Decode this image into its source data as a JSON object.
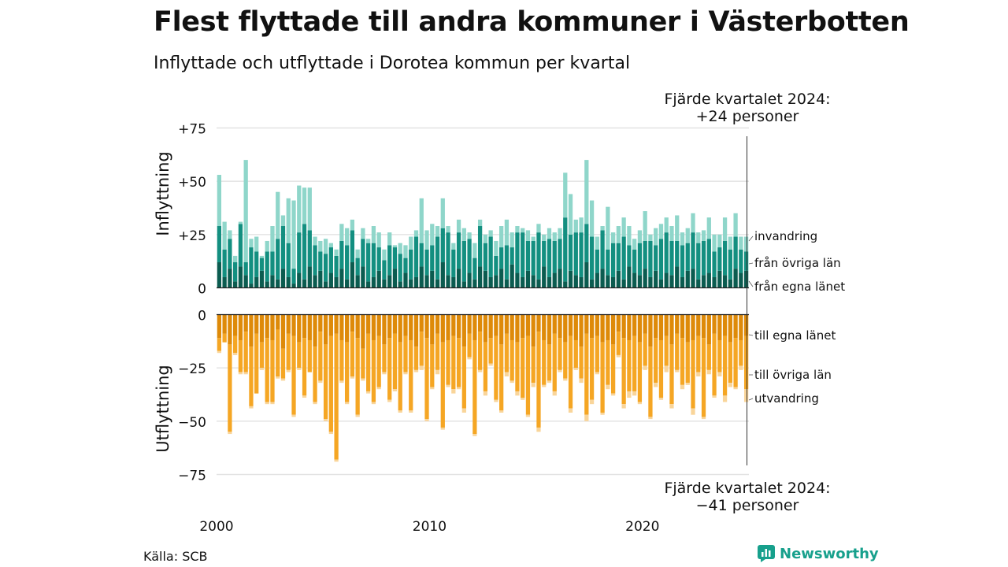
{
  "title": "Flest flyttade till andra kommuner i Västerbotten",
  "subtitle": "Inflyttade och utflyttade i Dorotea kommun per kvartal",
  "source": "Källa: SCB",
  "brand": "Newsworthy",
  "colors": {
    "from_own_county": "#0b5c50",
    "from_other_counties": "#138f80",
    "immigration": "#8fd6ca",
    "to_own_county": "#de8a09",
    "to_other_counties": "#f5a624",
    "emigration": "#f9d59a",
    "brand": "#17a08c"
  },
  "chart_data": {
    "type": "bar",
    "stacked": true,
    "x_start": "2000 Q1",
    "x_end": "2024 Q4",
    "xticks": [
      "2000",
      "2010",
      "2020"
    ],
    "top_panel": {
      "ylabel": "Inflyttning",
      "yticks": [
        "+75",
        "+50",
        "+25",
        "0"
      ],
      "ylim": [
        0,
        75
      ],
      "series": [
        {
          "name": "från egna länet",
          "values": [
            12,
            5,
            9,
            3,
            10,
            6,
            2,
            5,
            8,
            3,
            6,
            4,
            9,
            5,
            2,
            7,
            4,
            10,
            6,
            8,
            3,
            7,
            5,
            9,
            4,
            12,
            6,
            10,
            3,
            5,
            8,
            4,
            6,
            9,
            3,
            7,
            4,
            5,
            10,
            6,
            8,
            4,
            12,
            6,
            5,
            9,
            3,
            7,
            4,
            10,
            8,
            5,
            6,
            9,
            4,
            11,
            7,
            5,
            8,
            6,
            4,
            10,
            5,
            7,
            9,
            3,
            8,
            6,
            5,
            12,
            4,
            7,
            9,
            6,
            5,
            8,
            4,
            10,
            7,
            6,
            9,
            5,
            8,
            4,
            7,
            6,
            10,
            5,
            8,
            9,
            4,
            6,
            7,
            5,
            8,
            6,
            4,
            9,
            7,
            8
          ]
        },
        {
          "name": "från övriga län",
          "values": [
            17,
            13,
            14,
            9,
            20,
            6,
            17,
            12,
            6,
            14,
            11,
            19,
            20,
            16,
            7,
            19,
            26,
            17,
            14,
            9,
            13,
            12,
            10,
            13,
            16,
            15,
            8,
            13,
            18,
            16,
            11,
            9,
            14,
            10,
            13,
            7,
            14,
            19,
            11,
            12,
            12,
            20,
            16,
            20,
            13,
            17,
            19,
            16,
            10,
            19,
            13,
            19,
            9,
            10,
            16,
            8,
            19,
            21,
            14,
            16,
            22,
            12,
            18,
            15,
            14,
            30,
            17,
            20,
            21,
            18,
            20,
            11,
            18,
            12,
            16,
            13,
            20,
            10,
            11,
            15,
            13,
            17,
            12,
            19,
            19,
            16,
            12,
            15,
            13,
            17,
            17,
            16,
            16,
            12,
            11,
            16,
            14,
            15,
            11,
            9
          ]
        },
        {
          "name": "invandring",
          "values": [
            24,
            13,
            4,
            3,
            1,
            48,
            4,
            7,
            1,
            5,
            12,
            22,
            5,
            21,
            32,
            22,
            17,
            20,
            4,
            5,
            7,
            2,
            3,
            8,
            8,
            5,
            4,
            5,
            2,
            8,
            7,
            5,
            6,
            1,
            5,
            6,
            6,
            3,
            21,
            9,
            10,
            5,
            14,
            3,
            3,
            6,
            6,
            3,
            7,
            3,
            4,
            3,
            7,
            10,
            12,
            7,
            3,
            2,
            5,
            2,
            4,
            3,
            5,
            4,
            5,
            21,
            19,
            6,
            7,
            30,
            17,
            6,
            2,
            20,
            5,
            8,
            9,
            9,
            5,
            6,
            14,
            3,
            8,
            7,
            7,
            7,
            12,
            6,
            7,
            9,
            5,
            5,
            10,
            8,
            6,
            11,
            6,
            11,
            6,
            7
          ]
        }
      ],
      "annotation": [
        "Fjärde kvartalet 2024:",
        "+24 personer"
      ]
    },
    "bottom_panel": {
      "ylabel": "Utflyttning",
      "yticks": [
        "0",
        "−25",
        "−50",
        "−75"
      ],
      "ylim": [
        -75,
        0
      ],
      "series": [
        {
          "name": "till egna länet",
          "values": [
            -11,
            -9,
            -14,
            -10,
            -12,
            -8,
            -15,
            -9,
            -13,
            -11,
            -12,
            -7,
            -16,
            -9,
            -10,
            -13,
            -11,
            -12,
            -15,
            -8,
            -14,
            -10,
            -9,
            -12,
            -13,
            -8,
            -11,
            -16,
            -9,
            -12,
            -10,
            -14,
            -11,
            -9,
            -13,
            -10,
            -12,
            -15,
            -8,
            -11,
            -14,
            -9,
            -13,
            -12,
            -10,
            -11,
            -15,
            -9,
            -12,
            -8,
            -13,
            -11,
            -10,
            -14,
            -9,
            -12,
            -13,
            -11,
            -10,
            -15,
            -8,
            -12,
            -14,
            -9,
            -11,
            -13,
            -10,
            -12,
            -15,
            -9,
            -11,
            -10,
            -13,
            -12,
            -14,
            -8,
            -11,
            -12,
            -10,
            -13,
            -9,
            -15,
            -11,
            -12,
            -10,
            -14,
            -9,
            -11,
            -13,
            -12,
            -10,
            -11,
            -14,
            -9,
            -12,
            -10,
            -13,
            -11,
            -12,
            -10
          ]
        },
        {
          "name": "till övriga län",
          "values": [
            -6,
            -4,
            -41,
            -8,
            -15,
            -19,
            -28,
            -28,
            -12,
            -30,
            -29,
            -22,
            -14,
            -17,
            -37,
            -12,
            -27,
            -15,
            -26,
            -23,
            -35,
            -45,
            -59,
            -19,
            -28,
            -21,
            -36,
            -14,
            -27,
            -29,
            -24,
            -13,
            -29,
            -26,
            -32,
            -17,
            -33,
            -11,
            -16,
            -38,
            -20,
            -17,
            -40,
            -21,
            -25,
            -23,
            -29,
            -11,
            -44,
            -18,
            -23,
            -12,
            -30,
            -31,
            -18,
            -19,
            -23,
            -28,
            -37,
            -17,
            -45,
            -21,
            -17,
            -27,
            -15,
            -17,
            -34,
            -13,
            -15,
            -38,
            -29,
            -17,
            -33,
            -21,
            -23,
            -11,
            -31,
            -24,
            -26,
            -28,
            -15,
            -33,
            -21,
            -27,
            -14,
            -28,
            -17,
            -22,
            -19,
            -32,
            -17,
            -37,
            -12,
            -29,
            -15,
            -28,
            -19,
            -23,
            -12,
            -25
          ]
        },
        {
          "name": "utvandring",
          "values": [
            -1,
            0,
            -1,
            -1,
            -1,
            -1,
            -1,
            0,
            -1,
            -1,
            -1,
            -1,
            -1,
            -1,
            -1,
            -1,
            -1,
            0,
            -1,
            -1,
            -1,
            -1,
            -1,
            -1,
            -1,
            -1,
            -1,
            -1,
            -1,
            -1,
            -1,
            -1,
            -1,
            -1,
            -1,
            -1,
            -1,
            -1,
            -2,
            -1,
            -1,
            -2,
            -1,
            -1,
            -2,
            -1,
            -2,
            -1,
            -1,
            -1,
            -2,
            -1,
            -1,
            -1,
            -2,
            -1,
            -2,
            -1,
            -1,
            -2,
            -2,
            -1,
            -1,
            -2,
            -1,
            -1,
            -2,
            -1,
            -2,
            -3,
            -2,
            -1,
            -1,
            -2,
            -1,
            -1,
            -2,
            -3,
            -2,
            -1,
            -2,
            -1,
            -2,
            -1,
            -3,
            -2,
            -1,
            -2,
            -1,
            -3,
            -2,
            -1,
            -2,
            -1,
            -2,
            -3,
            -2,
            -1,
            -2,
            -6
          ]
        }
      ],
      "annotation": [
        "Fjärde kvartalet 2024:",
        "−41 personer"
      ]
    }
  }
}
